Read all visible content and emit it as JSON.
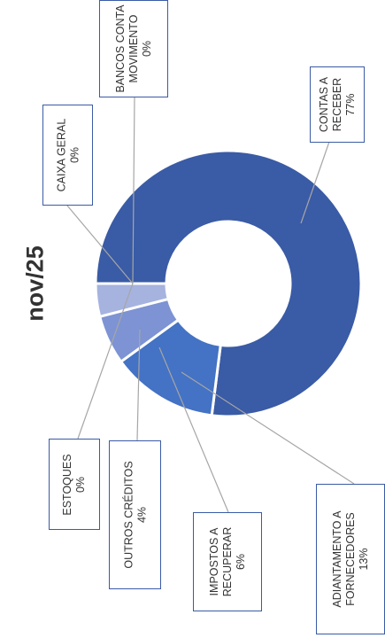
{
  "chart_data": {
    "type": "donut",
    "title": "nov/25",
    "categories": [
      "CONTAS A RECEBER",
      "ADIANTAMENTO A FORNECEDORES",
      "IMPOSTOS A RECUPERAR",
      "OUTROS CRÉDITOS",
      "ESTOQUES",
      "CAIXA GERAL",
      "BANCOS CONTA MOVIMENTO"
    ],
    "values": [
      77,
      13,
      6,
      4,
      0,
      0,
      0
    ],
    "value_labels": [
      "77%",
      "13%",
      "6%",
      "4%",
      "0%",
      "0%",
      "0%"
    ],
    "colors": [
      "#3a5ba5",
      "#4472c4",
      "#7d93d3",
      "#a6b3df",
      "#c5cde9",
      "#2e4a86",
      "#5a78bf"
    ]
  }
}
